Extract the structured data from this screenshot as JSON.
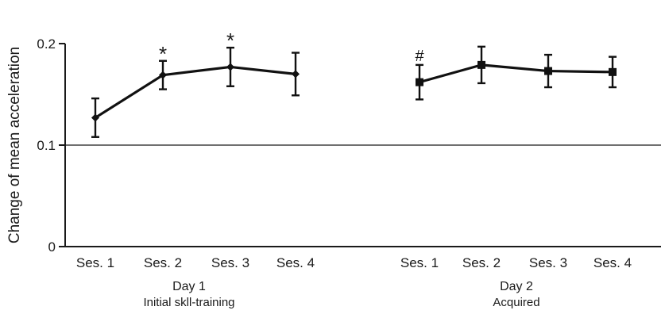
{
  "chart_data": {
    "type": "line",
    "ylabel": "Change of mean acceleration",
    "ylim": [
      0,
      0.2
    ],
    "yticks": [
      {
        "value": 0,
        "label": "0"
      },
      {
        "value": 0.1,
        "label": "0.1"
      },
      {
        "value": 0.2,
        "label": "0.2"
      }
    ],
    "reference_line": 0.1,
    "grid": false,
    "groups": [
      {
        "title": "Day 1",
        "subtitle": "Initial skll-training",
        "marker": "diamond",
        "categories": [
          "Ses. 1",
          "Ses. 2",
          "Ses. 3",
          "Ses. 4"
        ],
        "values": [
          0.127,
          0.169,
          0.177,
          0.17
        ],
        "errors": [
          0.019,
          0.014,
          0.019,
          0.021
        ],
        "annotations": [
          "",
          "*",
          "*",
          ""
        ]
      },
      {
        "title": "Day 2",
        "subtitle": "Acquired",
        "marker": "square",
        "categories": [
          "Ses. 1",
          "Ses. 2",
          "Ses. 3",
          "Ses. 4"
        ],
        "values": [
          0.162,
          0.179,
          0.173,
          0.172
        ],
        "errors": [
          0.017,
          0.018,
          0.016,
          0.015
        ],
        "annotations": [
          "#",
          "",
          "",
          ""
        ]
      }
    ]
  }
}
